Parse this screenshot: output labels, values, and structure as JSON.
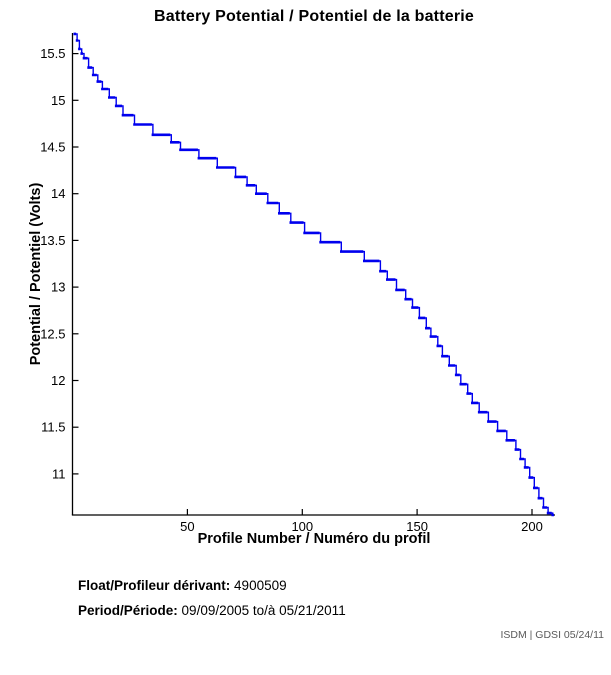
{
  "title": "Battery Potential / Potentiel de la batterie",
  "chart_data": {
    "type": "line",
    "step": "after",
    "title": "Battery Potential / Potentiel de la batterie",
    "xlabel": "Profile Number / Numéro du profil",
    "ylabel": "Potential / Potentiel (Volts)",
    "xlim": [
      0,
      210
    ],
    "ylim": [
      10.56,
      15.72
    ],
    "x_ticks": [
      50,
      100,
      150,
      200
    ],
    "y_ticks": [
      11,
      11.5,
      12,
      12.5,
      13,
      13.5,
      14,
      14.5,
      15,
      15.5
    ],
    "grid": false,
    "legend": false,
    "line_color": "#0000ee",
    "axis_color": "#000000",
    "series": [
      {
        "name": "battery-potential-volts",
        "points": [
          [
            1,
            15.71
          ],
          [
            2,
            15.64
          ],
          [
            3,
            15.55
          ],
          [
            4,
            15.5
          ],
          [
            5,
            15.45
          ],
          [
            7,
            15.35
          ],
          [
            9,
            15.27
          ],
          [
            11,
            15.2
          ],
          [
            13,
            15.12
          ],
          [
            16,
            15.03
          ],
          [
            19,
            14.94
          ],
          [
            22,
            14.84
          ],
          [
            27,
            14.74
          ],
          [
            35,
            14.63
          ],
          [
            43,
            14.55
          ],
          [
            47,
            14.47
          ],
          [
            55,
            14.38
          ],
          [
            63,
            14.28
          ],
          [
            71,
            14.18
          ],
          [
            76,
            14.09
          ],
          [
            80,
            14.0
          ],
          [
            85,
            13.9
          ],
          [
            90,
            13.79
          ],
          [
            95,
            13.69
          ],
          [
            101,
            13.58
          ],
          [
            108,
            13.48
          ],
          [
            117,
            13.38
          ],
          [
            127,
            13.28
          ],
          [
            134,
            13.17
          ],
          [
            137,
            13.08
          ],
          [
            141,
            12.97
          ],
          [
            145,
            12.87
          ],
          [
            148,
            12.78
          ],
          [
            151,
            12.67
          ],
          [
            154,
            12.56
          ],
          [
            156,
            12.47
          ],
          [
            159,
            12.37
          ],
          [
            161,
            12.26
          ],
          [
            164,
            12.16
          ],
          [
            167,
            12.06
          ],
          [
            169,
            11.96
          ],
          [
            172,
            11.86
          ],
          [
            174,
            11.76
          ],
          [
            177,
            11.66
          ],
          [
            181,
            11.56
          ],
          [
            185,
            11.46
          ],
          [
            189,
            11.36
          ],
          [
            193,
            11.26
          ],
          [
            195,
            11.16
          ],
          [
            197,
            11.07
          ],
          [
            199,
            10.96
          ],
          [
            201,
            10.85
          ],
          [
            203,
            10.74
          ],
          [
            205,
            10.64
          ],
          [
            207,
            10.58
          ],
          [
            209,
            10.56
          ]
        ]
      }
    ]
  },
  "footer": {
    "float_label": "Float/Profileur dérivant:",
    "float_value": "4900509",
    "period_label": "Period/Période:",
    "period_value": "09/09/2005 to/à 05/21/2011"
  },
  "watermark": "ISDM | GDSI 05/24/11"
}
